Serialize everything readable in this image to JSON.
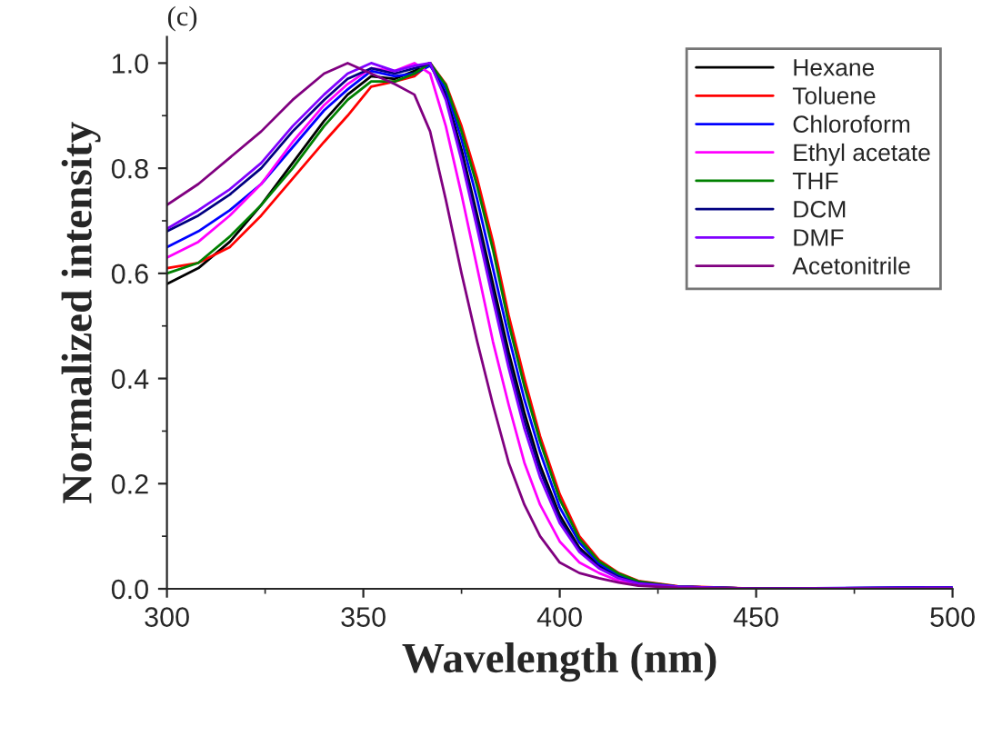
{
  "chart_data": {
    "type": "line",
    "xlabel": "Wavelength (nm)",
    "ylabel": "Normalized intensity",
    "annotations": [
      "(c)"
    ],
    "x": [
      300,
      308,
      316,
      324,
      332,
      340,
      346,
      352,
      358,
      363,
      367,
      371,
      375,
      379,
      383,
      387,
      391,
      395,
      400,
      405,
      410,
      415,
      420,
      430,
      450,
      500
    ],
    "series": [
      {
        "name": "Hexane",
        "color": "#000000",
        "values": [
          0.58,
          0.61,
          0.66,
          0.73,
          0.81,
          0.89,
          0.94,
          0.975,
          0.97,
          0.985,
          1.0,
          0.94,
          0.835,
          0.71,
          0.58,
          0.45,
          0.335,
          0.235,
          0.14,
          0.078,
          0.044,
          0.024,
          0.012,
          0.004,
          0.0,
          0.002
        ]
      },
      {
        "name": "Toluene",
        "color": "#ff0000",
        "values": [
          0.61,
          0.62,
          0.65,
          0.71,
          0.78,
          0.85,
          0.9,
          0.955,
          0.965,
          0.975,
          1.0,
          0.96,
          0.88,
          0.78,
          0.66,
          0.52,
          0.4,
          0.29,
          0.18,
          0.1,
          0.055,
          0.03,
          0.015,
          0.005,
          0.0,
          0.0
        ]
      },
      {
        "name": "Chloroform",
        "color": "#0000ff",
        "values": [
          0.65,
          0.68,
          0.72,
          0.77,
          0.84,
          0.91,
          0.95,
          0.985,
          0.975,
          0.98,
          0.995,
          0.95,
          0.855,
          0.74,
          0.61,
          0.48,
          0.36,
          0.26,
          0.155,
          0.088,
          0.048,
          0.026,
          0.012,
          0.004,
          0.0,
          0.003
        ]
      },
      {
        "name": "Ethyl acetate",
        "color": "#ff00ff",
        "values": [
          0.63,
          0.66,
          0.71,
          0.77,
          0.85,
          0.92,
          0.96,
          0.99,
          0.985,
          1.0,
          0.98,
          0.88,
          0.75,
          0.61,
          0.47,
          0.35,
          0.24,
          0.16,
          0.09,
          0.05,
          0.03,
          0.015,
          0.008,
          0.003,
          null,
          null
        ]
      },
      {
        "name": "THF",
        "color": "#008000",
        "values": [
          0.6,
          0.62,
          0.67,
          0.73,
          0.8,
          0.88,
          0.93,
          0.965,
          0.965,
          0.98,
          1.0,
          0.958,
          0.87,
          0.765,
          0.645,
          0.505,
          0.385,
          0.28,
          0.17,
          0.095,
          0.052,
          0.029,
          0.014,
          0.004,
          0.0,
          0.0
        ]
      },
      {
        "name": "DCM",
        "color": "#000080",
        "values": [
          0.68,
          0.71,
          0.75,
          0.8,
          0.87,
          0.93,
          0.97,
          0.99,
          0.98,
          0.99,
          1.0,
          0.935,
          0.825,
          0.7,
          0.565,
          0.435,
          0.32,
          0.225,
          0.132,
          0.074,
          0.041,
          0.022,
          0.011,
          0.004,
          0.0,
          0.002
        ]
      },
      {
        "name": "DMF",
        "color": "#8000ff",
        "values": [
          0.685,
          0.72,
          0.76,
          0.81,
          0.88,
          0.94,
          0.98,
          1.0,
          0.985,
          0.995,
          1.0,
          0.93,
          0.815,
          0.685,
          0.55,
          0.42,
          0.305,
          0.212,
          0.125,
          0.07,
          0.039,
          0.02,
          0.01,
          0.004,
          0.0,
          0.002
        ]
      },
      {
        "name": "Acetonitrile",
        "color": "#800080",
        "values": [
          0.73,
          0.77,
          0.82,
          0.87,
          0.93,
          0.98,
          1.0,
          0.98,
          0.96,
          0.94,
          0.87,
          0.74,
          0.6,
          0.47,
          0.35,
          0.24,
          0.16,
          0.1,
          0.05,
          0.03,
          0.02,
          0.012,
          0.006,
          0.002,
          0.0,
          0.0
        ]
      }
    ],
    "xlim": [
      300,
      500
    ],
    "ylim": [
      0.0,
      1.05
    ],
    "xticks": [
      300,
      350,
      400,
      450,
      500
    ],
    "yticks": [
      {
        "value": 0.0,
        "label": "0.0"
      },
      {
        "value": 0.2,
        "label": "0.2"
      },
      {
        "value": 0.4,
        "label": "0.4"
      },
      {
        "value": 0.6,
        "label": "0.6"
      },
      {
        "value": 0.8,
        "label": "0.8"
      },
      {
        "value": 1.0,
        "label": "1.0"
      }
    ],
    "legend": "top right",
    "grid": false,
    "line_style": "solid"
  }
}
